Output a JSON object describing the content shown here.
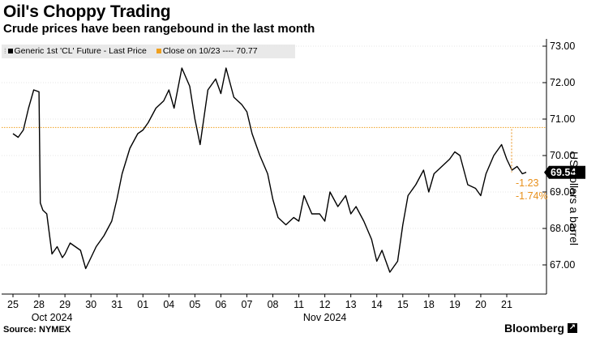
{
  "title": "Oil's Choppy Trading",
  "subtitle": "Crude prices have been rangebound in the last month",
  "source": "Source: NYMEX",
  "brand": "Bloomberg",
  "legend": {
    "handle": "⁞",
    "series_label": "Generic 1st 'CL' Future - Last Price",
    "reference_label": "Close on 10/23 ---- 70.77"
  },
  "colors": {
    "series": "#000000",
    "reference": "#f0a01e",
    "annotation": "#e8901a",
    "grid": "#e6e6e6",
    "legend_bg": "#e9e9e9"
  },
  "icons": {
    "brand_mark": "arrow-icon"
  },
  "chart_data": {
    "type": "line",
    "title": "Oil's Choppy Trading",
    "subtitle": "Crude prices have been rangebound in the last month",
    "ylabel": "US dollars a barrel",
    "y_axis_side": "right",
    "ylim": [
      66.2,
      73.2
    ],
    "yticks": [
      67.0,
      68.0,
      69.0,
      70.0,
      71.0,
      72.0,
      73.0
    ],
    "ytick_labels": [
      "67.00",
      "68.00",
      "69.00",
      "70.00",
      "71.00",
      "72.00",
      "73.00"
    ],
    "grid": "horizontal dotted",
    "legend_position": "top-left",
    "x_tick_labels": [
      "25",
      "28",
      "29",
      "30",
      "31",
      "01",
      "04",
      "05",
      "06",
      "07",
      "08",
      "11",
      "12",
      "13",
      "14",
      "15",
      "18",
      "19",
      "20",
      "21"
    ],
    "x_group_labels": [
      "Oct 2024",
      "Nov 2024"
    ],
    "reference_line": {
      "name": "Close on 10/23",
      "value": 70.77
    },
    "last_value": {
      "value": 69.54,
      "label": "69.54"
    },
    "annotations": [
      "-1.23",
      "-1.74%"
    ],
    "series": [
      {
        "name": "Generic 1st 'CL' Future - Last Price",
        "x": [
          0,
          0.2,
          0.4,
          0.6,
          0.8,
          1.0,
          1.05,
          1.15,
          1.3,
          1.5,
          1.7,
          1.9,
          2.0,
          2.2,
          2.4,
          2.6,
          2.8,
          3.0,
          3.2,
          3.5,
          3.8,
          4.0,
          4.2,
          4.5,
          4.8,
          5.0,
          5.2,
          5.5,
          5.8,
          6.0,
          6.2,
          6.5,
          6.8,
          7.0,
          7.2,
          7.5,
          7.8,
          8.0,
          8.2,
          8.5,
          8.8,
          9.0,
          9.2,
          9.5,
          9.8,
          10.0,
          10.2,
          10.5,
          10.8,
          11.0,
          11.2,
          11.5,
          11.8,
          12.0,
          12.2,
          12.5,
          12.8,
          13.0,
          13.2,
          13.5,
          13.8,
          14.0,
          14.2,
          14.5,
          14.8,
          15.0,
          15.2,
          15.5,
          15.8,
          16.0,
          16.2,
          16.5,
          16.8,
          17.0,
          17.2,
          17.5,
          17.8,
          18.0,
          18.2,
          18.5,
          18.8,
          19.0,
          19.2,
          19.4,
          19.6,
          19.75
        ],
        "values": [
          70.6,
          70.5,
          70.7,
          71.3,
          71.8,
          71.75,
          68.7,
          68.5,
          68.4,
          67.3,
          67.5,
          67.2,
          67.3,
          67.6,
          67.5,
          67.4,
          66.9,
          67.2,
          67.5,
          67.8,
          68.2,
          68.8,
          69.5,
          70.2,
          70.6,
          70.7,
          70.9,
          71.3,
          71.5,
          71.8,
          71.3,
          72.4,
          71.9,
          71.0,
          70.3,
          71.8,
          72.1,
          71.7,
          72.4,
          71.6,
          71.4,
          71.2,
          70.6,
          70.0,
          69.5,
          68.8,
          68.3,
          68.1,
          68.3,
          68.2,
          68.9,
          68.4,
          68.4,
          68.2,
          69.0,
          68.6,
          68.9,
          68.4,
          68.6,
          68.2,
          67.7,
          67.1,
          67.4,
          66.8,
          67.1,
          68.1,
          68.9,
          69.2,
          69.6,
          69.0,
          69.5,
          69.7,
          69.9,
          70.1,
          70.0,
          69.2,
          69.1,
          68.9,
          69.5,
          70.0,
          70.3,
          69.9,
          69.6,
          69.7,
          69.5,
          69.54
        ]
      }
    ]
  }
}
